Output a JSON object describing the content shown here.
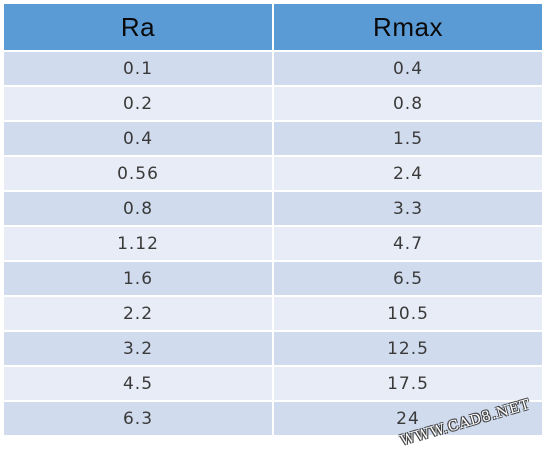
{
  "table": {
    "headers": [
      "Ra",
      "Rmax"
    ],
    "rows": [
      [
        "0.1",
        "0.4"
      ],
      [
        "0.2",
        "0.8"
      ],
      [
        "0.4",
        "1.5"
      ],
      [
        "0.56",
        "2.4"
      ],
      [
        "0.8",
        "3.3"
      ],
      [
        "1.12",
        "4.7"
      ],
      [
        "1.6",
        "6.5"
      ],
      [
        "2.2",
        "10.5"
      ],
      [
        "3.2",
        "12.5"
      ],
      [
        "4.5",
        "17.5"
      ],
      [
        "6.3",
        "24"
      ]
    ]
  },
  "watermark": "WWW.CAD8.NET",
  "colors": {
    "header": "#5b9bd5",
    "row_odd": "#d0dbee",
    "row_even": "#e8ecf6"
  }
}
